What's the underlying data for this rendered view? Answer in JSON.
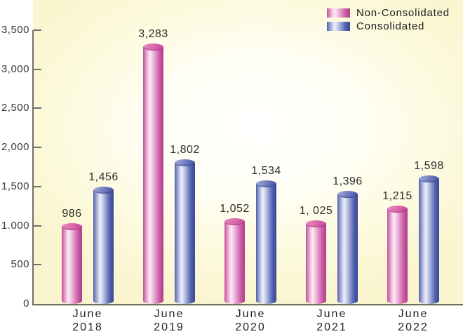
{
  "chart_data": {
    "type": "bar",
    "title": "",
    "xlabel": "",
    "ylabel": "",
    "grid": false,
    "legend_position": "top-right",
    "bar_style": "3d-cylinder",
    "categories": [
      {
        "line1": "June",
        "line2": "2018"
      },
      {
        "line1": "June",
        "line2": "2019"
      },
      {
        "line1": "June",
        "line2": "2020"
      },
      {
        "line1": "June",
        "line2": "2021"
      },
      {
        "line1": "June",
        "line2": "2022"
      }
    ],
    "series": [
      {
        "name": "Non-Consolidated",
        "key": "non-consolidated",
        "values": [
          986,
          3283,
          1052,
          1025,
          1215
        ],
        "value_labels": [
          "986",
          "3,283",
          "1,052",
          "1, 025",
          "1,215"
        ],
        "color_dark": "#bf4f99",
        "color_light": "#fceaf5"
      },
      {
        "name": "Consolidated",
        "key": "consolidated",
        "values": [
          1456,
          1802,
          1534,
          1396,
          1598
        ],
        "value_labels": [
          "1,456",
          "1,802",
          "1,534",
          "1,396",
          "1,598"
        ],
        "color_dark": "#4c5aa7",
        "color_light": "#eef0f9"
      }
    ],
    "y_axis": {
      "min": 0,
      "max": 3500,
      "tick_step": 500,
      "tick_values": [
        0,
        500,
        1000,
        1500,
        2000,
        2500,
        3000,
        3500
      ],
      "tick_labels": [
        "0",
        "500",
        "1.000",
        "1,500",
        "2,000",
        "2,500",
        "3,000",
        "3,500"
      ]
    },
    "plot_background": {
      "edge": "#faf5cf",
      "center": "#ffffff"
    },
    "axis_color": "#6e6e6e",
    "text_color": "#2e2e2e"
  }
}
